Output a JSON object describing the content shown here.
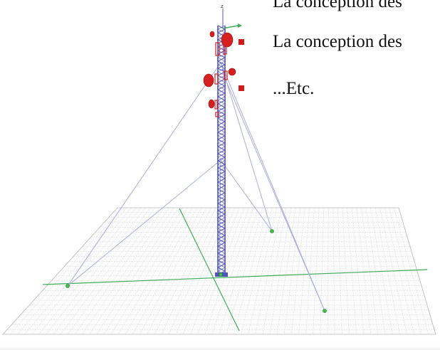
{
  "slide": {
    "bullets": [
      {
        "text": "La conception des",
        "marker": false,
        "clipped": true
      },
      {
        "text": "La conception des",
        "marker": true
      },
      {
        "text": "...Etc.",
        "marker": true
      }
    ]
  },
  "model": {
    "axis_label": "z",
    "colors": {
      "mast": "#5454b8",
      "guy_cable": "#a9aedd",
      "grid_line": "#c4c4c4",
      "grid_axis": "#3fae5a",
      "anchor_point": "#3fc24a",
      "antenna": "#d62020",
      "bullet_marker": "#d11a1a"
    }
  }
}
